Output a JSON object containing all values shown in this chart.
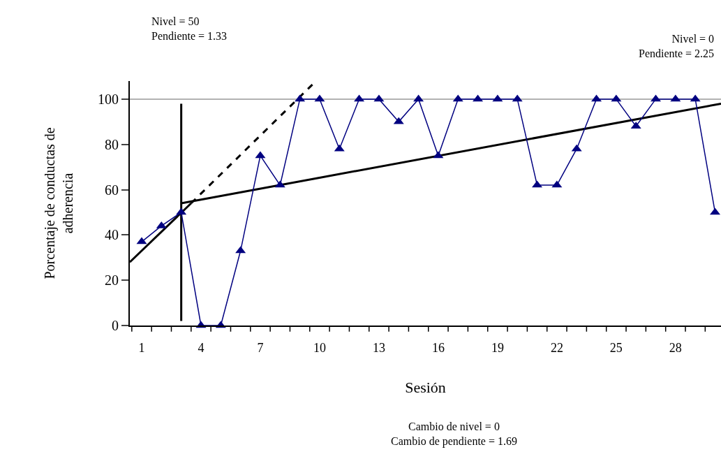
{
  "chart_data": {
    "type": "line",
    "xlabel": "Sesión",
    "ylabel": "Porcentaje de conductas de\nadherencia",
    "x": [
      1,
      2,
      3,
      4,
      5,
      6,
      7,
      8,
      9,
      10,
      11,
      12,
      13,
      14,
      15,
      16,
      17,
      18,
      19,
      20,
      21,
      22,
      23,
      24,
      25,
      26,
      27,
      28,
      29,
      30
    ],
    "series": [
      {
        "color": "#000080",
        "marker": "triangle",
        "line_style": "solid",
        "values": [
          37,
          44,
          50,
          0,
          0,
          33,
          75,
          62,
          100,
          100,
          78,
          100,
          100,
          90,
          100,
          75,
          100,
          100,
          100,
          100,
          62,
          62,
          78,
          100,
          100,
          88,
          100,
          100,
          100,
          50
        ]
      },
      {
        "color": "#000000",
        "marker": "none",
        "line_style": "solid",
        "x": [
          0.4,
          3.5
        ],
        "values": [
          28,
          54
        ]
      },
      {
        "color": "#000000",
        "marker": "none",
        "line_style": "dashed",
        "x": [
          3.5,
          9.7
        ],
        "values": [
          54,
          107
        ]
      },
      {
        "color": "#000000",
        "marker": "none",
        "line_style": "solid",
        "x": [
          3,
          30.3
        ],
        "values": [
          54,
          98
        ]
      },
      {
        "color": "#000000",
        "marker": "none",
        "line_style": "solid",
        "x": [
          3,
          3
        ],
        "values": [
          2,
          98
        ]
      }
    ],
    "xlim": [
      0.4,
      30.3
    ],
    "xticks": [
      {
        "value": 0.5,
        "label": null
      },
      1,
      {
        "value": 1.5,
        "label": null
      },
      {
        "value": 2.5,
        "label": null
      },
      {
        "value": 3.5,
        "label": null
      },
      4,
      {
        "value": 4.5,
        "label": null
      },
      {
        "value": 5.5,
        "label": null
      },
      {
        "value": 6.5,
        "label": null
      },
      7,
      {
        "value": 7.5,
        "label": null
      },
      {
        "value": 8.5,
        "label": null
      },
      {
        "value": 9.5,
        "label": null
      },
      10,
      {
        "value": 10.5,
        "label": null
      },
      {
        "value": 11.5,
        "label": null
      },
      {
        "value": 12.5,
        "label": null
      },
      13,
      {
        "value": 13.5,
        "label": null
      },
      {
        "value": 14.5,
        "label": null
      },
      {
        "value": 15.5,
        "label": null
      },
      16,
      {
        "value": 16.5,
        "label": null
      },
      {
        "value": 17.5,
        "label": null
      },
      {
        "value": 18.5,
        "label": null
      },
      19,
      {
        "value": 19.5,
        "label": null
      },
      {
        "value": 20.5,
        "label": null
      },
      {
        "value": 21.5,
        "label": null
      },
      22,
      {
        "value": 22.5,
        "label": null
      },
      {
        "value": 23.5,
        "label": null
      },
      {
        "value": 24.5,
        "label": null
      },
      25,
      {
        "value": 25.5,
        "label": null
      },
      {
        "value": 26.5,
        "label": null
      },
      {
        "value": 27.5,
        "label": null
      },
      28,
      {
        "value": 28.5,
        "label": null
      },
      {
        "value": 29.5,
        "label": null
      }
    ],
    "ylim": [
      0,
      108
    ],
    "yticks": [
      0,
      20,
      40,
      60,
      80,
      100
    ],
    "grid": false,
    "ref_lines": [
      {
        "axis": "y",
        "value": 100,
        "label": null,
        "color": "#999999"
      }
    ],
    "annotations": [
      "Nivel = 50\nPendiente = 1.33",
      "Nivel = 0\nPendiente = 2.25",
      "Cambio de nivel = 0\nCambio de pendiente = 1.69"
    ]
  }
}
